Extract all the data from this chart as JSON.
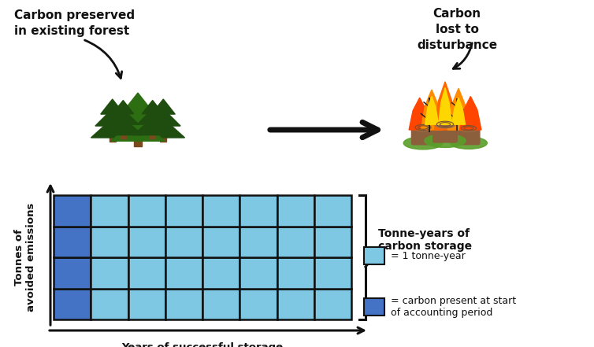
{
  "bg_color": "#ffffff",
  "grid_rows": 4,
  "grid_cols": 8,
  "light_blue": "#7EC8E3",
  "dark_blue": "#4472C4",
  "grid_border_color": "#111111",
  "label_forest": "Carbon preserved\nin existing forest",
  "label_fire": "Carbon\nlost to\ndisturbance",
  "label_tonne_years": "Tonne-years of\ncarbon storage",
  "label_light": "= 1 tonne-year",
  "label_dark": "= carbon present at start\nof accounting period",
  "xlabel": "Years of successful storage",
  "ylabel": "Tonnes of\navoided emissions",
  "font_family": "DejaVu Sans",
  "arrow_color": "#111111",
  "tree_dark": "#1e4d0f",
  "tree_mid": "#2d6e12",
  "trunk_color": "#7a4a1e",
  "stump_color": "#8B5E3C",
  "stump_top": "#A0724A",
  "ground_color": "#5a9e2a",
  "flame1": "#FF4500",
  "flame2": "#FF8C00",
  "flame3": "#FF6600",
  "flame_inner": "#FFD700"
}
